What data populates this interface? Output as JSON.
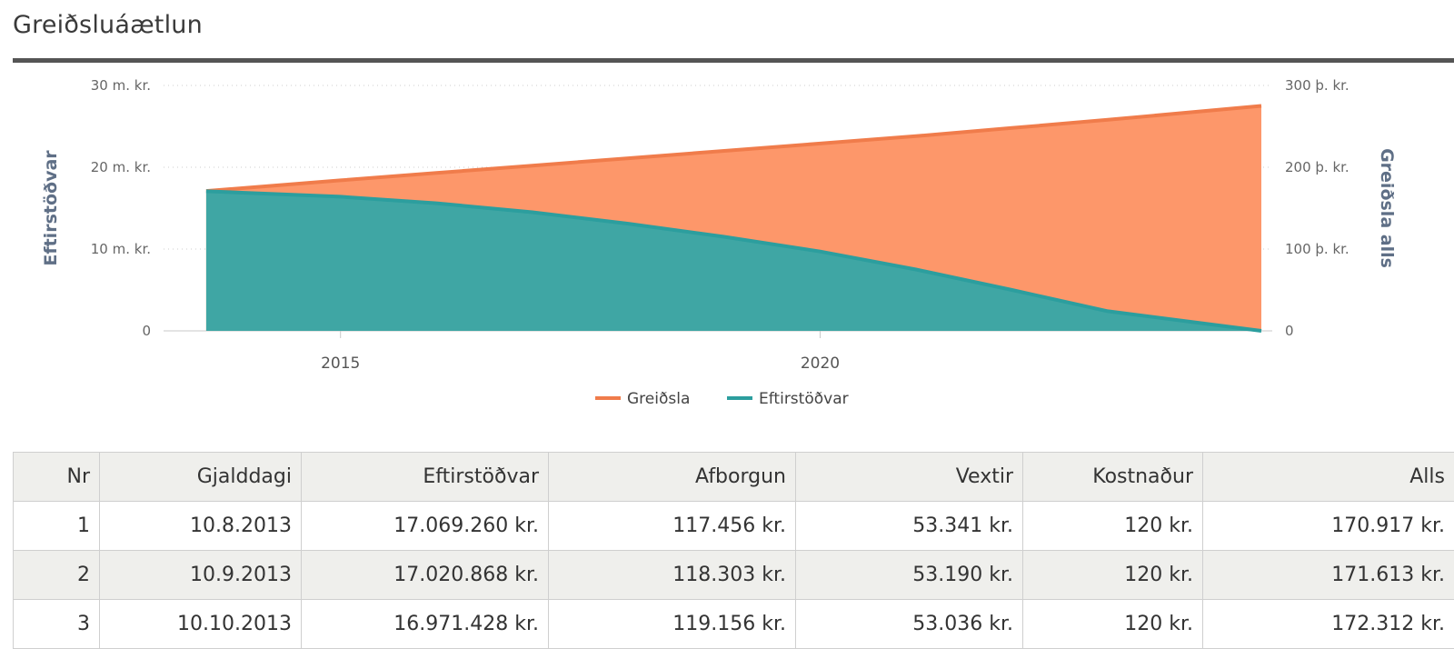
{
  "page": {
    "title": "Greiðsluáætlun"
  },
  "chart_data": {
    "type": "area",
    "x_ticks": [
      2015,
      2020
    ],
    "y_left": {
      "label": "Eftirstöðvar",
      "ticks": [
        "0",
        "10 m. kr.",
        "20 m. kr.",
        "30 m. kr."
      ],
      "ylim": [
        0,
        30000000
      ]
    },
    "y_right": {
      "label": "Greiðsla alls",
      "ticks": [
        "0",
        "100 þ. kr.",
        "200 þ. kr.",
        "300 þ. kr."
      ],
      "ylim": [
        0,
        300000
      ]
    },
    "grid": "dotted horizontal",
    "legend": {
      "position": "bottom-center"
    },
    "series": [
      {
        "name": "Greiðsla",
        "axis": "right",
        "color": "#f07c4b",
        "fill": "#fd976a",
        "x": [
          2013.6,
          2015,
          2016,
          2017,
          2018,
          2019,
          2020,
          2021,
          2022,
          2023,
          2024.6
        ],
        "y": [
          171000,
          184000,
          193000,
          202000,
          211000,
          220000,
          229000,
          238000,
          248000,
          258000,
          275000
        ]
      },
      {
        "name": "Eftirstöðvar",
        "axis": "left",
        "color": "#2c9e9e",
        "fill": "#3fa6a4",
        "x": [
          2013.6,
          2015,
          2016,
          2017,
          2018,
          2019,
          2020,
          2021,
          2022,
          2023,
          2024.6
        ],
        "y": [
          17070000,
          16400000,
          15600000,
          14500000,
          13100000,
          11500000,
          9700000,
          7500000,
          5000000,
          2400000,
          0
        ]
      }
    ]
  },
  "table": {
    "headers": [
      "Nr",
      "Gjalddagi",
      "Eftirstöðvar",
      "Afborgun",
      "Vextir",
      "Kostnaður",
      "Alls"
    ],
    "rows": [
      [
        "1",
        "10.8.2013",
        "17.069.260 kr.",
        "117.456 kr.",
        "53.341 kr.",
        "120 kr.",
        "170.917 kr."
      ],
      [
        "2",
        "10.9.2013",
        "17.020.868 kr.",
        "118.303 kr.",
        "53.190 kr.",
        "120 kr.",
        "171.613 kr."
      ],
      [
        "3",
        "10.10.2013",
        "16.971.428 kr.",
        "119.156 kr.",
        "53.036 kr.",
        "120 kr.",
        "172.312 kr."
      ]
    ]
  }
}
